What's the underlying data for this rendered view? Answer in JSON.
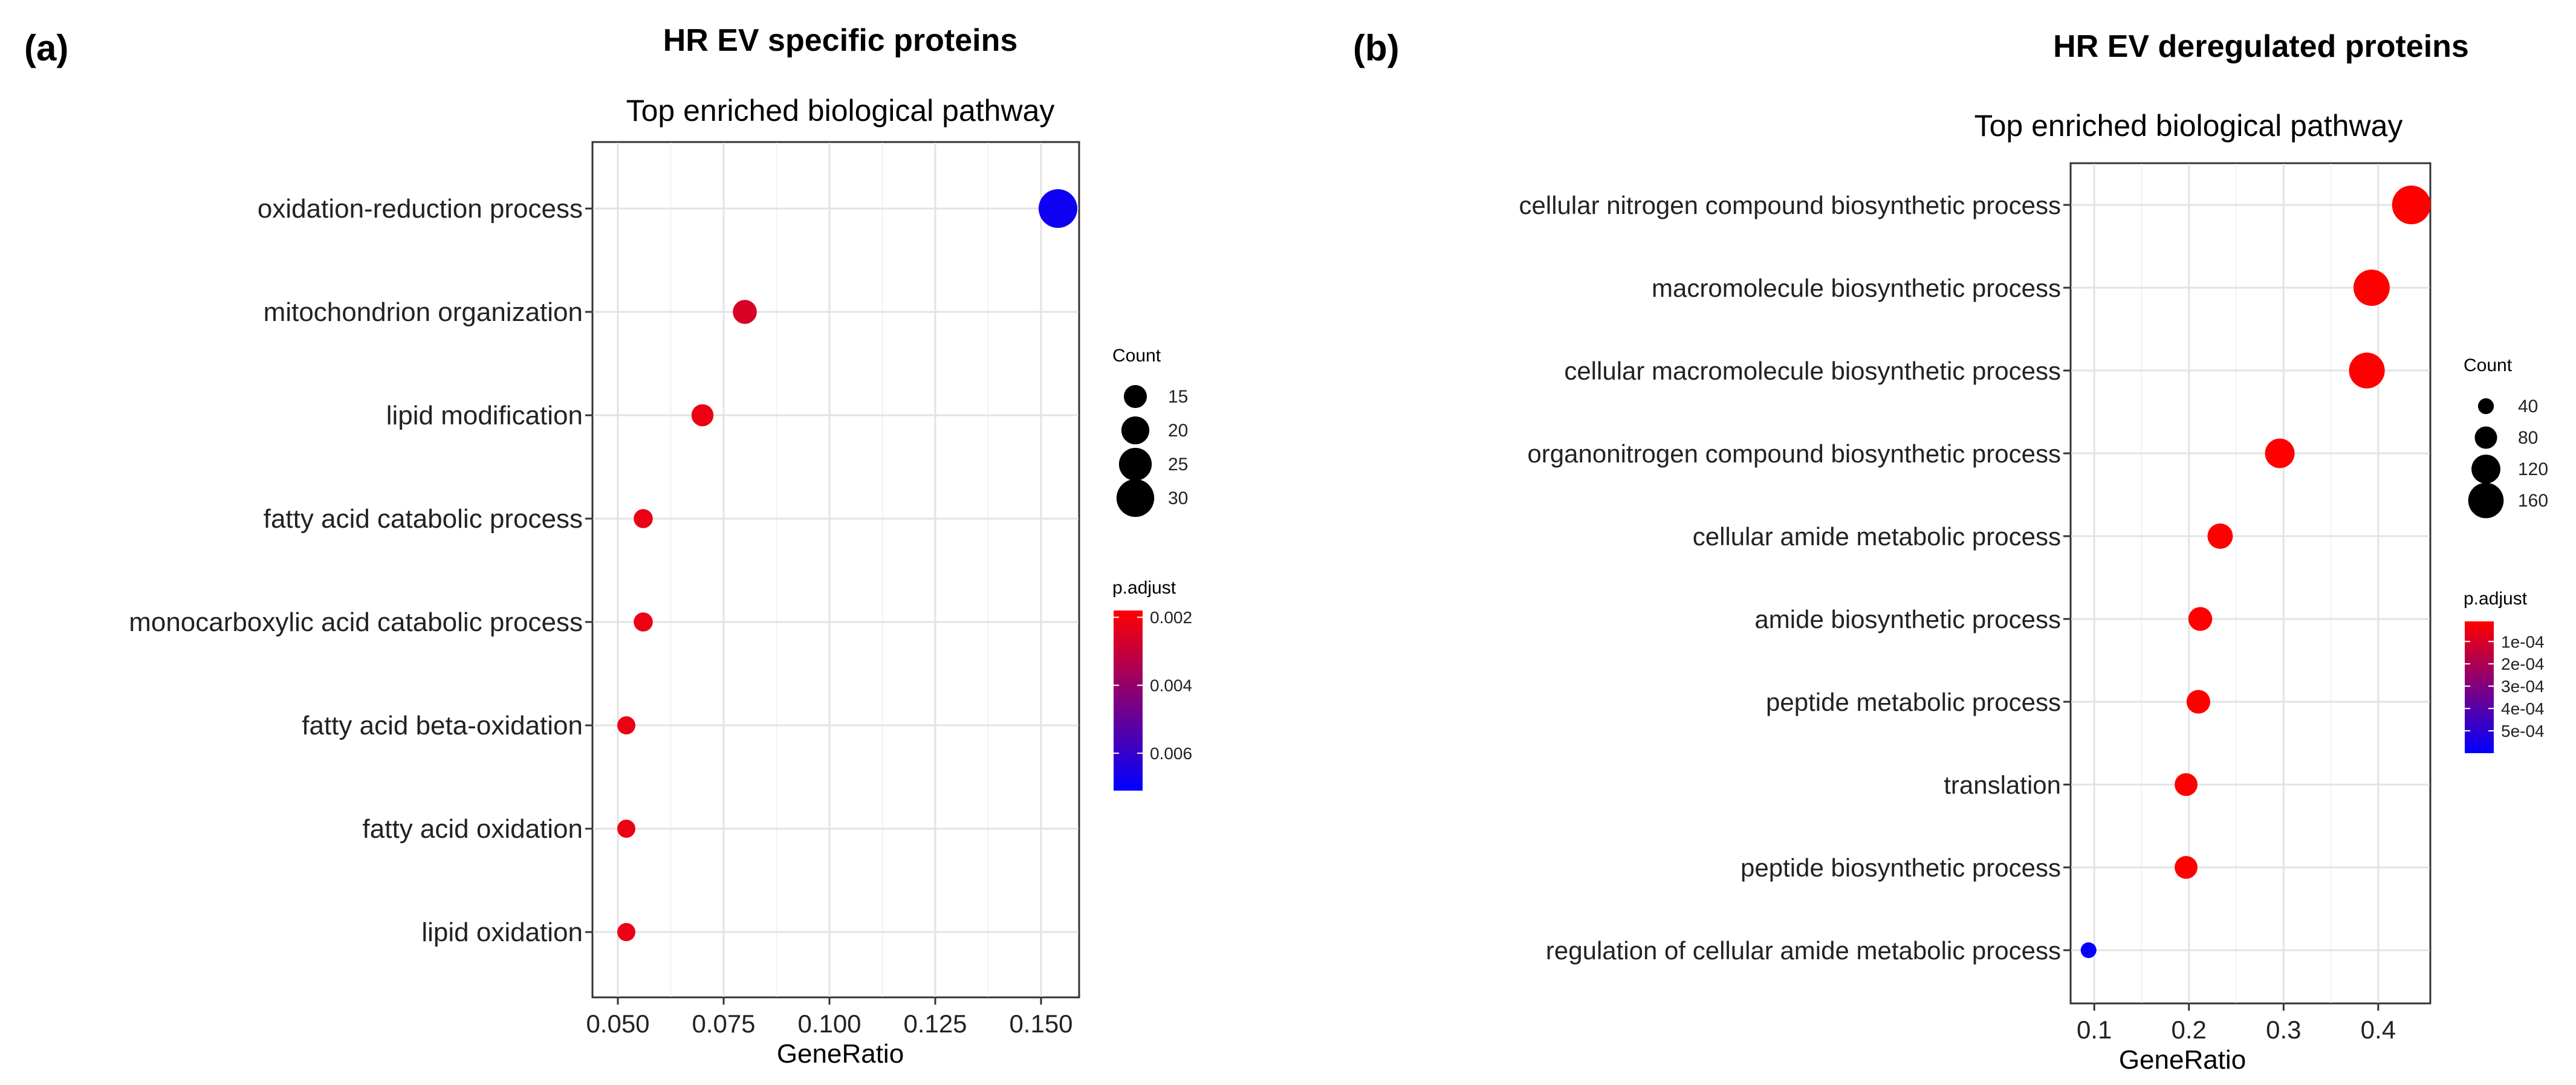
{
  "chart_data": [
    {
      "type": "scatter",
      "panel_label": "(a)",
      "header": "HR EV specific proteins",
      "title": "Top enriched biological pathway",
      "xlabel": "GeneRatio",
      "ylabel": "",
      "xlim": [
        0.044,
        0.159
      ],
      "xticks": [
        0.05,
        0.075,
        0.1,
        0.125,
        0.15
      ],
      "xtick_labels": [
        "0.050",
        "0.075",
        "0.100",
        "0.125",
        "0.150"
      ],
      "grid": true,
      "points": [
        {
          "term": "oxidation-reduction process",
          "x": 0.154,
          "count": 31,
          "p_adjust": 0.0068
        },
        {
          "term": "mitochondrion organization",
          "x": 0.08,
          "count": 16,
          "p_adjust": 0.0026
        },
        {
          "term": "lipid modification",
          "x": 0.07,
          "count": 14,
          "p_adjust": 0.0022
        },
        {
          "term": "fatty acid catabolic process",
          "x": 0.056,
          "count": 11,
          "p_adjust": 0.0022
        },
        {
          "term": "monocarboxylic acid catabolic process",
          "x": 0.056,
          "count": 11,
          "p_adjust": 0.0022
        },
        {
          "term": "fatty acid beta-oxidation",
          "x": 0.052,
          "count": 10,
          "p_adjust": 0.0022
        },
        {
          "term": "fatty acid oxidation",
          "x": 0.052,
          "count": 10,
          "p_adjust": 0.0022
        },
        {
          "term": "lipid oxidation",
          "x": 0.052,
          "count": 10,
          "p_adjust": 0.0022
        }
      ],
      "size_legend": {
        "title": "Count",
        "values": [
          15,
          20,
          25,
          30
        ],
        "labels": [
          "15",
          "20",
          "25",
          "30"
        ],
        "min": 10,
        "max": 31
      },
      "color_legend": {
        "title": "p.adjust",
        "min": 0.0018,
        "max": 0.0071,
        "ticks": [
          0.002,
          0.004,
          0.006
        ],
        "tick_labels": [
          "0.002",
          "0.004",
          "0.006"
        ],
        "low_color": "#ff0000",
        "high_color": "#0000ff"
      }
    },
    {
      "type": "scatter",
      "panel_label": "(b)",
      "header": "HR EV deregulated proteins",
      "title": "Top enriched biological pathway",
      "xlabel": "GeneRatio",
      "ylabel": "",
      "xlim": [
        0.075,
        0.455
      ],
      "xticks": [
        0.1,
        0.2,
        0.3,
        0.4
      ],
      "xtick_labels": [
        "0.1",
        "0.2",
        "0.3",
        "0.4"
      ],
      "grid": true,
      "points": [
        {
          "term": "cellular nitrogen compound biosynthetic process",
          "x": 0.435,
          "count": 180,
          "p_adjust": 1e-07
        },
        {
          "term": "macromolecule biosynthetic process",
          "x": 0.393,
          "count": 165,
          "p_adjust": 1e-07
        },
        {
          "term": "cellular macromolecule biosynthetic process",
          "x": 0.388,
          "count": 162,
          "p_adjust": 1e-07
        },
        {
          "term": "organonitrogen compound biosynthetic process",
          "x": 0.296,
          "count": 124,
          "p_adjust": 1e-07
        },
        {
          "term": "cellular amide metabolic process",
          "x": 0.233,
          "count": 98,
          "p_adjust": 1e-07
        },
        {
          "term": "amide biosynthetic process",
          "x": 0.212,
          "count": 89,
          "p_adjust": 1e-07
        },
        {
          "term": "peptide metabolic process",
          "x": 0.21,
          "count": 88,
          "p_adjust": 1e-07
        },
        {
          "term": "translation",
          "x": 0.197,
          "count": 83,
          "p_adjust": 1e-07
        },
        {
          "term": "peptide biosynthetic process",
          "x": 0.197,
          "count": 83,
          "p_adjust": 1e-07
        },
        {
          "term": "regulation of cellular amide metabolic process",
          "x": 0.094,
          "count": 39,
          "p_adjust": 0.00059
        }
      ],
      "size_legend": {
        "title": "Count",
        "values": [
          40,
          80,
          120,
          160
        ],
        "labels": [
          "40",
          "80",
          "120",
          "160"
        ],
        "min": 39,
        "max": 180
      },
      "color_legend": {
        "title": "p.adjust",
        "min": 1e-05,
        "max": 0.0006,
        "ticks": [
          0.0001,
          0.0002,
          0.0003,
          0.0004,
          0.0005
        ],
        "tick_labels": [
          "1e-04",
          "2e-04",
          "3e-04",
          "4e-04",
          "5e-04"
        ],
        "low_color": "#ff0000",
        "high_color": "#0000ff"
      }
    }
  ]
}
